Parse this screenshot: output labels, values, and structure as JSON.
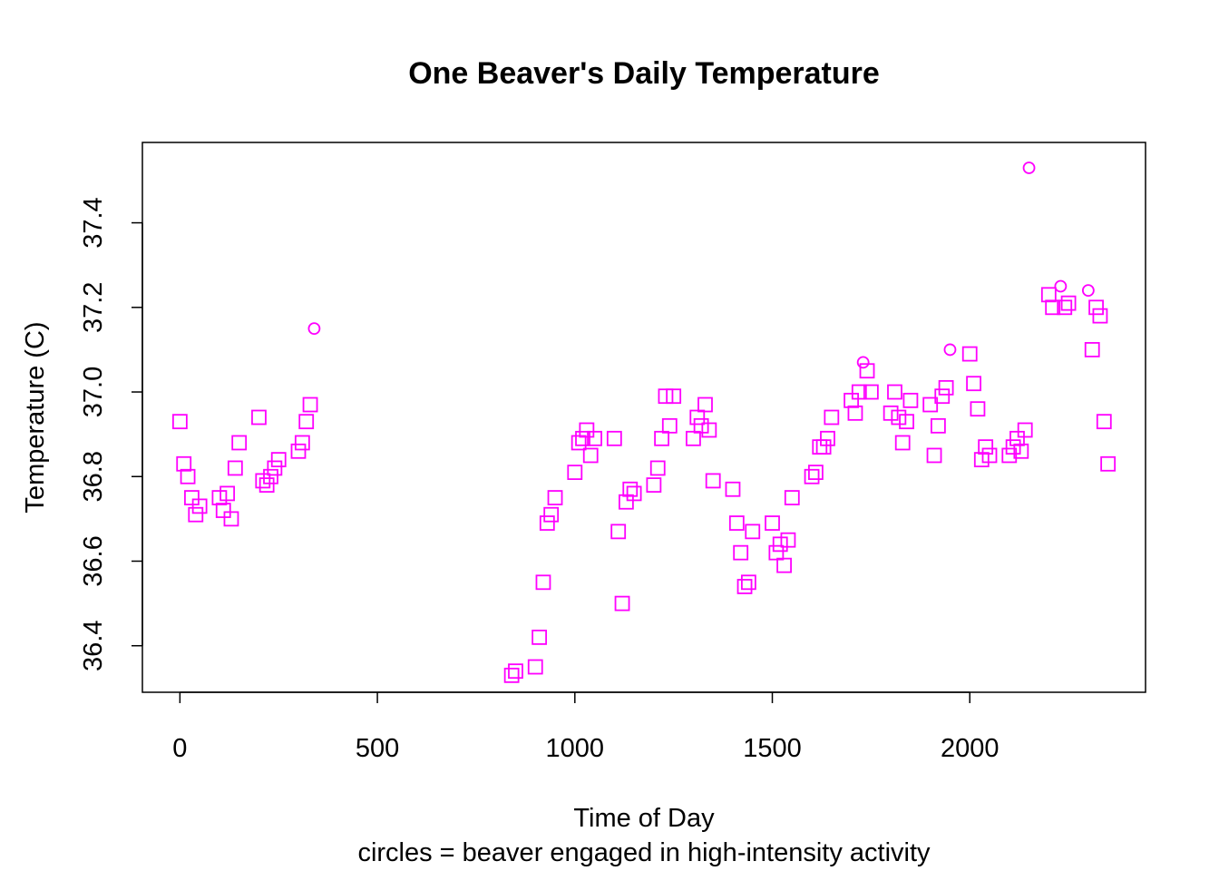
{
  "chart_data": {
    "type": "scatter",
    "title": "One Beaver's Daily Temperature",
    "xlabel": "Time of Day",
    "ylabel": "Temperature (C)",
    "subtitle": "circles = beaver engaged in high-intensity activity",
    "xlim": [
      -95,
      2445
    ],
    "ylim": [
      36.29,
      37.59
    ],
    "xticks": [
      0,
      500,
      1000,
      1500,
      2000
    ],
    "yticks": [
      36.4,
      36.6,
      36.8,
      37.0,
      37.2,
      37.4
    ],
    "ytick_labels": [
      "36.4",
      "36.6",
      "36.8",
      "37.0",
      "37.2",
      "37.4"
    ],
    "grid": false,
    "point_color": "#ff00ff",
    "series": [
      {
        "marker": "square",
        "points": [
          [
            0,
            36.93
          ],
          [
            10,
            36.83
          ],
          [
            20,
            36.8
          ],
          [
            30,
            36.75
          ],
          [
            40,
            36.71
          ],
          [
            50,
            36.73
          ],
          [
            100,
            36.75
          ],
          [
            110,
            36.72
          ],
          [
            120,
            36.76
          ],
          [
            130,
            36.7
          ],
          [
            140,
            36.82
          ],
          [
            150,
            36.88
          ],
          [
            200,
            36.94
          ],
          [
            210,
            36.79
          ],
          [
            220,
            36.78
          ],
          [
            230,
            36.8
          ],
          [
            240,
            36.82
          ],
          [
            250,
            36.84
          ],
          [
            300,
            36.86
          ],
          [
            310,
            36.88
          ],
          [
            320,
            36.93
          ],
          [
            330,
            36.97
          ],
          [
            840,
            36.33
          ],
          [
            850,
            36.34
          ],
          [
            900,
            36.35
          ],
          [
            910,
            36.42
          ],
          [
            920,
            36.55
          ],
          [
            930,
            36.69
          ],
          [
            940,
            36.71
          ],
          [
            950,
            36.75
          ],
          [
            1000,
            36.81
          ],
          [
            1010,
            36.88
          ],
          [
            1020,
            36.89
          ],
          [
            1030,
            36.91
          ],
          [
            1040,
            36.85
          ],
          [
            1050,
            36.89
          ],
          [
            1100,
            36.89
          ],
          [
            1110,
            36.67
          ],
          [
            1120,
            36.5
          ],
          [
            1130,
            36.74
          ],
          [
            1140,
            36.77
          ],
          [
            1150,
            36.76
          ],
          [
            1200,
            36.78
          ],
          [
            1210,
            36.82
          ],
          [
            1220,
            36.89
          ],
          [
            1230,
            36.99
          ],
          [
            1240,
            36.92
          ],
          [
            1250,
            36.99
          ],
          [
            1300,
            36.89
          ],
          [
            1310,
            36.94
          ],
          [
            1320,
            36.92
          ],
          [
            1330,
            36.97
          ],
          [
            1340,
            36.91
          ],
          [
            1350,
            36.79
          ],
          [
            1400,
            36.77
          ],
          [
            1410,
            36.69
          ],
          [
            1420,
            36.62
          ],
          [
            1430,
            36.54
          ],
          [
            1440,
            36.55
          ],
          [
            1450,
            36.67
          ],
          [
            1500,
            36.69
          ],
          [
            1510,
            36.62
          ],
          [
            1520,
            36.64
          ],
          [
            1530,
            36.59
          ],
          [
            1540,
            36.65
          ],
          [
            1550,
            36.75
          ],
          [
            1600,
            36.8
          ],
          [
            1610,
            36.81
          ],
          [
            1620,
            36.87
          ],
          [
            1630,
            36.87
          ],
          [
            1640,
            36.89
          ],
          [
            1650,
            36.94
          ],
          [
            1700,
            36.98
          ],
          [
            1710,
            36.95
          ],
          [
            1720,
            37.0
          ],
          [
            1740,
            37.05
          ],
          [
            1750,
            37.0
          ],
          [
            1800,
            36.95
          ],
          [
            1810,
            37.0
          ],
          [
            1820,
            36.94
          ],
          [
            1830,
            36.88
          ],
          [
            1840,
            36.93
          ],
          [
            1850,
            36.98
          ],
          [
            1900,
            36.97
          ],
          [
            1910,
            36.85
          ],
          [
            1920,
            36.92
          ],
          [
            1930,
            36.99
          ],
          [
            1940,
            37.01
          ],
          [
            2000,
            37.09
          ],
          [
            2010,
            37.02
          ],
          [
            2020,
            36.96
          ],
          [
            2030,
            36.84
          ],
          [
            2040,
            36.87
          ],
          [
            2050,
            36.85
          ],
          [
            2100,
            36.85
          ],
          [
            2110,
            36.87
          ],
          [
            2120,
            36.89
          ],
          [
            2130,
            36.86
          ],
          [
            2140,
            36.91
          ],
          [
            2200,
            37.23
          ],
          [
            2210,
            37.2
          ],
          [
            2240,
            37.2
          ],
          [
            2250,
            37.21
          ],
          [
            2310,
            37.1
          ],
          [
            2320,
            37.2
          ],
          [
            2330,
            37.18
          ],
          [
            2340,
            36.93
          ],
          [
            2350,
            36.83
          ]
        ]
      },
      {
        "marker": "circle",
        "points": [
          [
            340,
            37.15
          ],
          [
            1730,
            37.07
          ],
          [
            1950,
            37.1
          ],
          [
            2150,
            37.53
          ],
          [
            2230,
            37.25
          ],
          [
            2300,
            37.24
          ]
        ]
      }
    ]
  }
}
